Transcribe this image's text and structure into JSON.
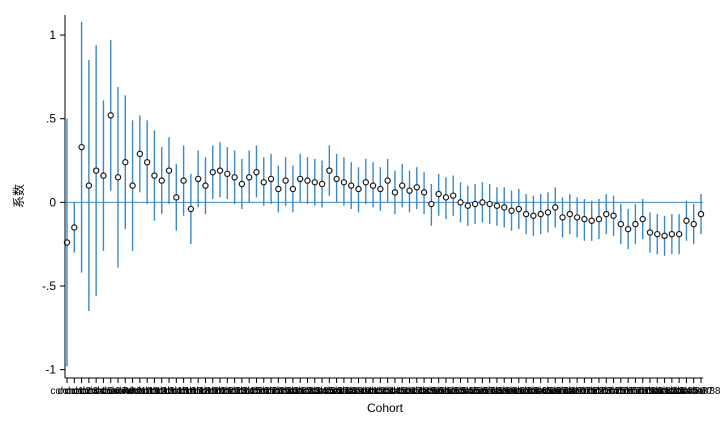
{
  "chart_data": {
    "type": "scatter",
    "title": "",
    "xlabel": "Cohort",
    "ylabel": "系数",
    "ylim": [
      -1.05,
      1.12
    ],
    "yticks": [
      1,
      0.5,
      0,
      -0.5,
      -1
    ],
    "ytick_labels": [
      "1",
      ".5",
      "0",
      "-.5",
      "-1"
    ],
    "reference_line": 0,
    "grid": false,
    "legend": "none",
    "colors": {
      "ci": "#3a88c9",
      "point_edge": "#1a1a1a",
      "point_fill": "#ffffff",
      "axis": "#000000",
      "zero_line": "#4a86c5"
    },
    "x_tick_label_text": "cohort",
    "series": [
      {
        "points": [
          {
            "y": -0.24,
            "lo": -0.98,
            "hi": 0.5
          },
          {
            "y": -0.15,
            "lo": -0.3,
            "hi": 0.0
          },
          {
            "y": 0.33,
            "lo": -0.42,
            "hi": 1.08
          },
          {
            "y": 0.1,
            "lo": -0.65,
            "hi": 0.85
          },
          {
            "y": 0.19,
            "lo": -0.56,
            "hi": 0.94
          },
          {
            "y": 0.16,
            "lo": -0.29,
            "hi": 0.61
          },
          {
            "y": 0.52,
            "lo": 0.07,
            "hi": 0.97
          },
          {
            "y": 0.15,
            "lo": -0.39,
            "hi": 0.69
          },
          {
            "y": 0.24,
            "lo": -0.16,
            "hi": 0.64
          },
          {
            "y": 0.1,
            "lo": -0.29,
            "hi": 0.49
          },
          {
            "y": 0.29,
            "lo": 0.06,
            "hi": 0.52
          },
          {
            "y": 0.24,
            "lo": -0.01,
            "hi": 0.49
          },
          {
            "y": 0.16,
            "lo": -0.11,
            "hi": 0.43
          },
          {
            "y": 0.13,
            "lo": -0.07,
            "hi": 0.33
          },
          {
            "y": 0.19,
            "lo": -0.01,
            "hi": 0.39
          },
          {
            "y": 0.03,
            "lo": -0.17,
            "hi": 0.23
          },
          {
            "y": 0.13,
            "lo": -0.08,
            "hi": 0.34
          },
          {
            "y": -0.04,
            "lo": -0.25,
            "hi": 0.17
          },
          {
            "y": 0.14,
            "lo": -0.03,
            "hi": 0.31
          },
          {
            "y": 0.1,
            "lo": -0.07,
            "hi": 0.27
          },
          {
            "y": 0.18,
            "lo": 0.02,
            "hi": 0.34
          },
          {
            "y": 0.19,
            "lo": 0.03,
            "hi": 0.36
          },
          {
            "y": 0.17,
            "lo": 0.02,
            "hi": 0.33
          },
          {
            "y": 0.15,
            "lo": -0.01,
            "hi": 0.31
          },
          {
            "y": 0.11,
            "lo": -0.04,
            "hi": 0.26
          },
          {
            "y": 0.15,
            "lo": 0.0,
            "hi": 0.31
          },
          {
            "y": 0.18,
            "lo": 0.03,
            "hi": 0.34
          },
          {
            "y": 0.12,
            "lo": -0.02,
            "hi": 0.27
          },
          {
            "y": 0.14,
            "lo": -0.01,
            "hi": 0.29
          },
          {
            "y": 0.08,
            "lo": -0.06,
            "hi": 0.22
          },
          {
            "y": 0.13,
            "lo": -0.02,
            "hi": 0.27
          },
          {
            "y": 0.08,
            "lo": -0.06,
            "hi": 0.22
          },
          {
            "y": 0.14,
            "lo": 0.0,
            "hi": 0.29
          },
          {
            "y": 0.13,
            "lo": -0.01,
            "hi": 0.27
          },
          {
            "y": 0.12,
            "lo": -0.02,
            "hi": 0.26
          },
          {
            "y": 0.11,
            "lo": -0.03,
            "hi": 0.25
          },
          {
            "y": 0.19,
            "lo": 0.04,
            "hi": 0.34
          },
          {
            "y": 0.14,
            "lo": 0.0,
            "hi": 0.29
          },
          {
            "y": 0.12,
            "lo": -0.02,
            "hi": 0.27
          },
          {
            "y": 0.1,
            "lo": -0.04,
            "hi": 0.24
          },
          {
            "y": 0.08,
            "lo": -0.06,
            "hi": 0.21
          },
          {
            "y": 0.12,
            "lo": -0.01,
            "hi": 0.26
          },
          {
            "y": 0.1,
            "lo": -0.03,
            "hi": 0.24
          },
          {
            "y": 0.08,
            "lo": -0.05,
            "hi": 0.21
          },
          {
            "y": 0.13,
            "lo": 0.0,
            "hi": 0.26
          },
          {
            "y": 0.06,
            "lo": -0.07,
            "hi": 0.19
          },
          {
            "y": 0.1,
            "lo": -0.03,
            "hi": 0.23
          },
          {
            "y": 0.07,
            "lo": -0.06,
            "hi": 0.19
          },
          {
            "y": 0.09,
            "lo": -0.04,
            "hi": 0.21
          },
          {
            "y": 0.06,
            "lo": -0.07,
            "hi": 0.18
          },
          {
            "y": -0.01,
            "lo": -0.14,
            "hi": 0.11
          },
          {
            "y": 0.05,
            "lo": -0.08,
            "hi": 0.17
          },
          {
            "y": 0.03,
            "lo": -0.1,
            "hi": 0.15
          },
          {
            "y": 0.04,
            "lo": -0.08,
            "hi": 0.16
          },
          {
            "y": 0.0,
            "lo": -0.12,
            "hi": 0.12
          },
          {
            "y": -0.02,
            "lo": -0.14,
            "hi": 0.1
          },
          {
            "y": -0.01,
            "lo": -0.13,
            "hi": 0.11
          },
          {
            "y": 0.0,
            "lo": -0.12,
            "hi": 0.12
          },
          {
            "y": -0.01,
            "lo": -0.13,
            "hi": 0.11
          },
          {
            "y": -0.02,
            "lo": -0.14,
            "hi": 0.09
          },
          {
            "y": -0.03,
            "lo": -0.15,
            "hi": 0.09
          },
          {
            "y": -0.05,
            "lo": -0.17,
            "hi": 0.07
          },
          {
            "y": -0.04,
            "lo": -0.16,
            "hi": 0.08
          },
          {
            "y": -0.07,
            "lo": -0.19,
            "hi": 0.05
          },
          {
            "y": -0.08,
            "lo": -0.2,
            "hi": 0.04
          },
          {
            "y": -0.07,
            "lo": -0.19,
            "hi": 0.05
          },
          {
            "y": -0.06,
            "lo": -0.18,
            "hi": 0.06
          },
          {
            "y": -0.03,
            "lo": -0.15,
            "hi": 0.09
          },
          {
            "y": -0.09,
            "lo": -0.21,
            "hi": 0.03
          },
          {
            "y": -0.07,
            "lo": -0.19,
            "hi": 0.05
          },
          {
            "y": -0.09,
            "lo": -0.21,
            "hi": 0.03
          },
          {
            "y": -0.1,
            "lo": -0.23,
            "hi": 0.02
          },
          {
            "y": -0.11,
            "lo": -0.23,
            "hi": 0.01
          },
          {
            "y": -0.1,
            "lo": -0.22,
            "hi": 0.02
          },
          {
            "y": -0.07,
            "lo": -0.19,
            "hi": 0.05
          },
          {
            "y": -0.08,
            "lo": -0.2,
            "hi": 0.04
          },
          {
            "y": -0.13,
            "lo": -0.25,
            "hi": -0.01
          },
          {
            "y": -0.16,
            "lo": -0.28,
            "hi": -0.04
          },
          {
            "y": -0.13,
            "lo": -0.25,
            "hi": -0.01
          },
          {
            "y": -0.1,
            "lo": -0.22,
            "hi": 0.02
          },
          {
            "y": -0.18,
            "lo": -0.3,
            "hi": -0.06
          },
          {
            "y": -0.19,
            "lo": -0.31,
            "hi": -0.07
          },
          {
            "y": -0.2,
            "lo": -0.32,
            "hi": -0.08
          },
          {
            "y": -0.19,
            "lo": -0.31,
            "hi": -0.07
          },
          {
            "y": -0.19,
            "lo": -0.31,
            "hi": -0.07
          },
          {
            "y": -0.11,
            "lo": -0.23,
            "hi": 0.01
          },
          {
            "y": -0.13,
            "lo": -0.25,
            "hi": -0.01
          },
          {
            "y": -0.07,
            "lo": -0.19,
            "hi": 0.05
          }
        ]
      }
    ]
  }
}
